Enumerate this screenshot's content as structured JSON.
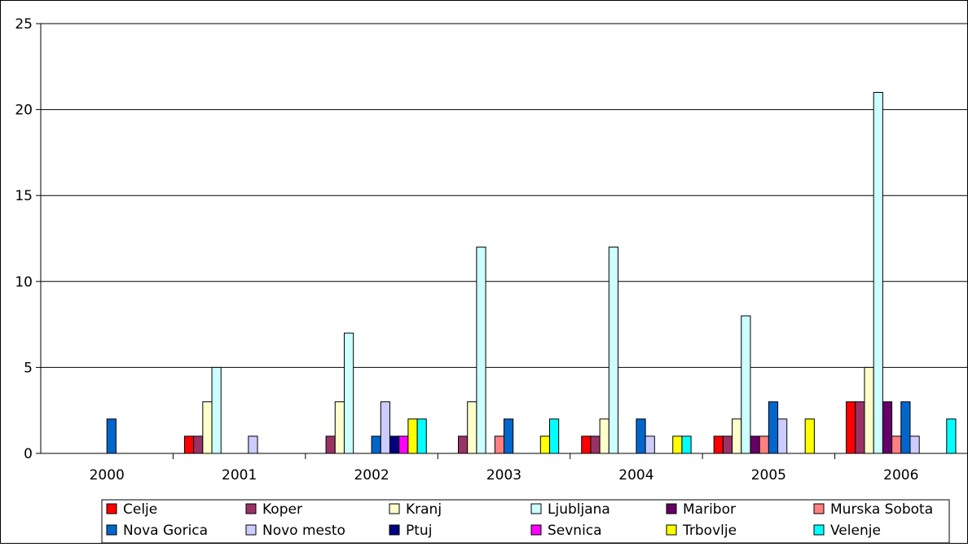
{
  "chart_data": {
    "type": "bar",
    "title": "",
    "xlabel": "",
    "ylabel": "",
    "categories": [
      "2000",
      "2001",
      "2002",
      "2003",
      "2004",
      "2005",
      "2006"
    ],
    "ylim": [
      0,
      25
    ],
    "yticks": [
      0,
      5,
      10,
      15,
      20,
      25
    ],
    "grid": true,
    "legend_position": "bottom",
    "series": [
      {
        "name": "Celje",
        "color": "#ff0000",
        "values": [
          0,
          1,
          0,
          0,
          1,
          1,
          3
        ]
      },
      {
        "name": "Koper",
        "color": "#993366",
        "values": [
          0,
          1,
          1,
          1,
          1,
          1,
          3
        ]
      },
      {
        "name": "Kranj",
        "color": "#ffffcc",
        "values": [
          0,
          3,
          3,
          3,
          2,
          2,
          5
        ]
      },
      {
        "name": "Ljubljana",
        "color": "#ccffff",
        "values": [
          0,
          5,
          7,
          12,
          12,
          8,
          21
        ]
      },
      {
        "name": "Maribor",
        "color": "#660066",
        "values": [
          0,
          0,
          0,
          0,
          0,
          1,
          3
        ]
      },
      {
        "name": "Murska Sobota",
        "color": "#ff8080",
        "values": [
          0,
          0,
          0,
          1,
          0,
          1,
          1
        ]
      },
      {
        "name": "Nova Gorica",
        "color": "#0066cc",
        "values": [
          2,
          0,
          1,
          2,
          2,
          3,
          3
        ]
      },
      {
        "name": "Novo mesto",
        "color": "#ccccff",
        "values": [
          0,
          1,
          3,
          0,
          1,
          2,
          1
        ]
      },
      {
        "name": "Ptuj",
        "color": "#000080",
        "values": [
          0,
          0,
          1,
          0,
          0,
          0,
          0
        ]
      },
      {
        "name": "Sevnica",
        "color": "#ff00ff",
        "values": [
          0,
          0,
          1,
          0,
          0,
          0,
          0
        ]
      },
      {
        "name": "Trbovlje",
        "color": "#ffff00",
        "values": [
          0,
          0,
          2,
          1,
          1,
          2,
          0
        ]
      },
      {
        "name": "Velenje",
        "color": "#00ffff",
        "values": [
          0,
          0,
          2,
          2,
          1,
          0,
          2
        ]
      }
    ]
  }
}
